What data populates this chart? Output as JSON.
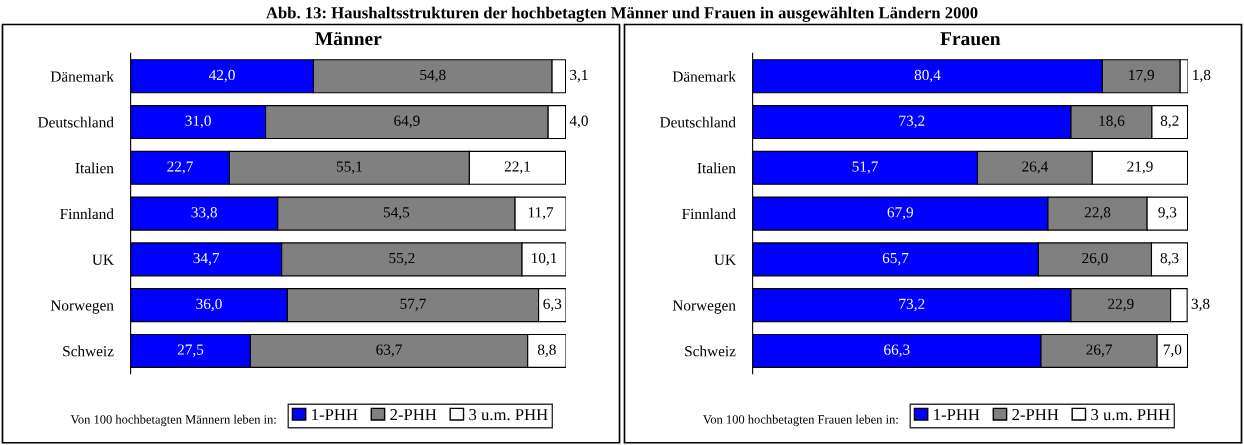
{
  "chart_data": [
    {
      "type": "bar",
      "title": "Abb. 13: Haushaltsstrukturen der hochbetagten Männer und Frauen in ausgewählten Ländern 2000",
      "subtitle": "Männer",
      "orientation": "horizontal",
      "stacked": true,
      "legend": "bottom",
      "legend_title": "Von 100 hochbetagten Männern leben in:",
      "categories": [
        "Dänemark",
        "Deutschland",
        "Italien",
        "Finnland",
        "UK",
        "Norwegen",
        "Schweiz"
      ],
      "series": [
        {
          "name": "1-PHH",
          "color": "#0000ff",
          "values": [
            42.0,
            31.0,
            22.7,
            33.8,
            34.7,
            36.0,
            27.5
          ],
          "value_labels": [
            "42,0",
            "31,0",
            "22,7",
            "33,8",
            "34,7",
            "36,0",
            "27,5"
          ]
        },
        {
          "name": "2-PHH",
          "color": "#808080",
          "values": [
            54.8,
            64.9,
            55.1,
            54.5,
            55.2,
            57.7,
            63.7
          ],
          "value_labels": [
            "54,8",
            "64,9",
            "55,1",
            "54,5",
            "55,2",
            "57,7",
            "63,7"
          ]
        },
        {
          "name": "3 u.m. PHH",
          "color": "#ffffff",
          "values": [
            3.1,
            4.0,
            22.1,
            11.7,
            10.1,
            6.3,
            8.8
          ],
          "value_labels": [
            "3,1",
            "4,0",
            "22,1",
            "11,7",
            "10,1",
            "6,3",
            "8,8"
          ]
        }
      ]
    },
    {
      "type": "bar",
      "subtitle": "Frauen",
      "orientation": "horizontal",
      "stacked": true,
      "legend": "bottom",
      "legend_title": "Von 100 hochbetagten Frauen leben in:",
      "categories": [
        "Dänemark",
        "Deutschland",
        "Italien",
        "Finnland",
        "UK",
        "Norwegen",
        "Schweiz"
      ],
      "series": [
        {
          "name": "1-PHH",
          "color": "#0000ff",
          "values": [
            80.4,
            73.2,
            51.7,
            67.9,
            65.7,
            73.2,
            66.3
          ],
          "value_labels": [
            "80,4",
            "73,2",
            "51,7",
            "67,9",
            "65,7",
            "73,2",
            "66,3"
          ]
        },
        {
          "name": "2-PHH",
          "color": "#808080",
          "values": [
            17.9,
            18.6,
            26.4,
            22.8,
            26.0,
            22.9,
            26.7
          ],
          "value_labels": [
            "17,9",
            "18,6",
            "26,4",
            "22,8",
            "26,0",
            "22,9",
            "26,7"
          ]
        },
        {
          "name": "3 u.m. PHH",
          "color": "#ffffff",
          "values": [
            1.8,
            8.2,
            21.9,
            9.3,
            8.3,
            3.8,
            7.0
          ],
          "value_labels": [
            "1,8",
            "8,2",
            "21,9",
            "9,3",
            "8,3",
            "3,8",
            "7,0"
          ]
        }
      ]
    }
  ]
}
